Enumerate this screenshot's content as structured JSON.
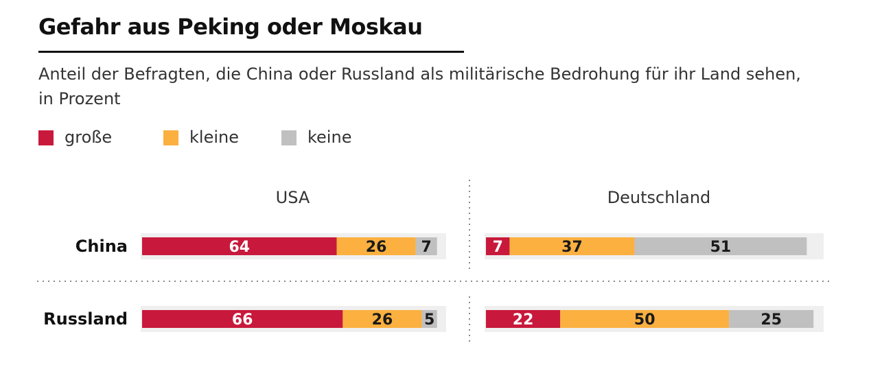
{
  "chart_data": {
    "type": "bar",
    "orientation": "horizontal",
    "stacked": true,
    "title": "Gefahr aus Peking oder Moskau",
    "subtitle": "Anteil der Befragten, die China oder Russland als militärische Bedrohung für ihr Land sehen, in Prozent",
    "groups": [
      "USA",
      "Deutschland"
    ],
    "categories": [
      "China",
      "Russland"
    ],
    "series": [
      {
        "name": "große",
        "color": "#c8193c",
        "values": {
          "USA": [
            64,
            66
          ],
          "Deutschland": [
            7,
            22
          ]
        }
      },
      {
        "name": "kleine",
        "color": "#fbb040",
        "values": {
          "USA": [
            26,
            26
          ],
          "Deutschland": [
            37,
            50
          ]
        }
      },
      {
        "name": "keine",
        "color": "#c0c0c0",
        "values": {
          "USA": [
            7,
            5
          ],
          "Deutschland": [
            51,
            25
          ]
        }
      }
    ],
    "xlim": [
      0,
      100
    ],
    "legend": "top-left",
    "grid": false
  }
}
